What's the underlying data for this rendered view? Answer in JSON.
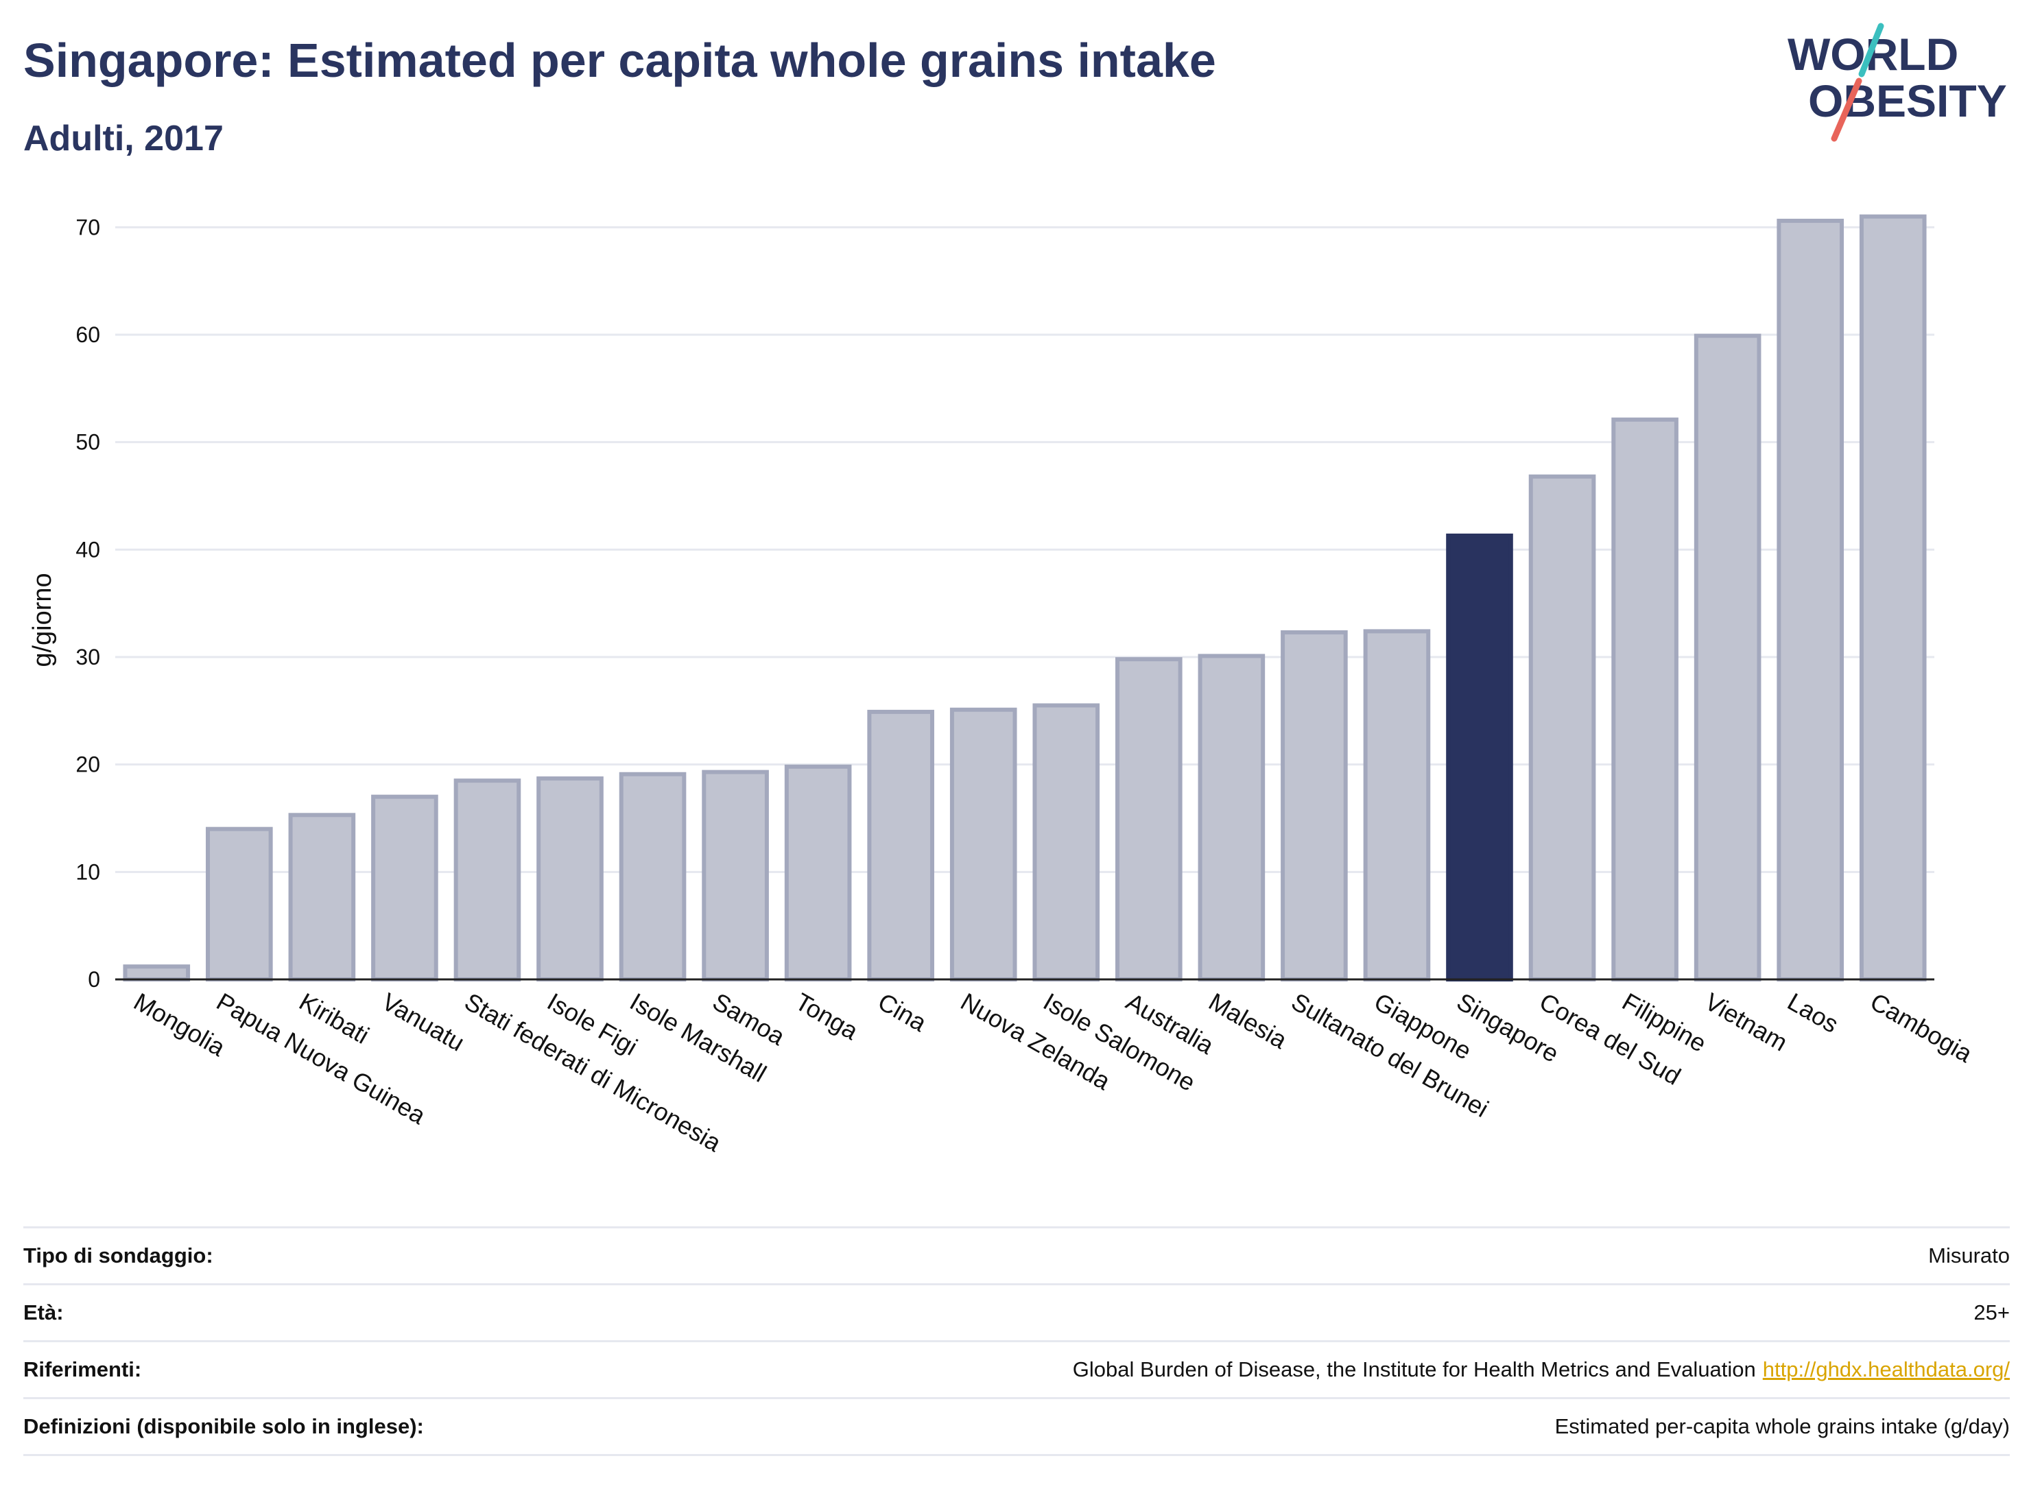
{
  "header": {
    "title": "Singapore: Estimated per capita whole grains intake",
    "subtitle": "Adulti, 2017"
  },
  "logo": {
    "line1": "WORLD",
    "line2": "OBESITY"
  },
  "colors": {
    "title": "#2a3560",
    "bar_default": "#c0c3d0",
    "bar_default_edge": "#a3a8bd",
    "bar_highlight": "#29335f",
    "axis": "#222222",
    "grid": "#e6e8ef",
    "link": "#d9a400",
    "logo_teal": "#3bbfbf",
    "logo_red": "#e8645a"
  },
  "chart_data": {
    "type": "bar",
    "ylabel": "g/giorno",
    "xlabel": "",
    "ylim": [
      0,
      72
    ],
    "yticks": [
      0,
      10,
      20,
      30,
      40,
      50,
      60,
      70
    ],
    "grid": true,
    "highlight": "Singapore",
    "categories": [
      "Mongolia",
      "Papua Nuova Guinea",
      "Kiribati",
      "Vanuatu",
      "Stati federati di Micronesia",
      "Isole Figi",
      "Isole Marshall",
      "Samoa",
      "Tonga",
      "Cina",
      "Nuova Zelanda",
      "Isole Salomone",
      "Australia",
      "Malesia",
      "Sultanato del Brunei",
      "Giappone",
      "Singapore",
      "Corea del Sud",
      "Filippine",
      "Vietnam",
      "Laos",
      "Cambogia"
    ],
    "values": [
      1.2,
      14.0,
      15.3,
      17.0,
      18.5,
      18.7,
      19.1,
      19.3,
      19.8,
      24.9,
      25.1,
      25.5,
      29.8,
      30.1,
      32.3,
      32.4,
      41.3,
      46.8,
      52.1,
      59.9,
      70.6,
      71.0
    ]
  },
  "info": [
    {
      "label": "Tipo di sondaggio:",
      "value": "Misurato"
    },
    {
      "label": "Età:",
      "value": "25+"
    },
    {
      "label": "Riferimenti:",
      "value": "Global Burden of Disease, the Institute for Health Metrics and Evaluation",
      "link": "http://ghdx.healthdata.org/"
    },
    {
      "label": "Definizioni (disponibile solo in inglese):",
      "value": "Estimated per-capita whole grains intake (g/day)"
    }
  ]
}
